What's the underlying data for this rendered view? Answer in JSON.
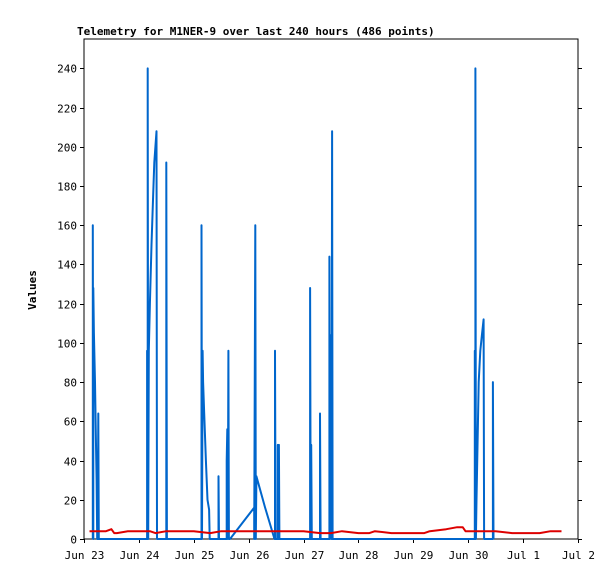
{
  "chart_data": {
    "type": "line",
    "title": "Telemetry for M1NER-9 over last 240 hours (486 points)",
    "ylabel": "Values",
    "xlabel": "",
    "ylim": [
      0,
      255
    ],
    "xlim": [
      0,
      9
    ],
    "yticks": [
      0,
      20,
      40,
      60,
      80,
      100,
      120,
      140,
      160,
      180,
      200,
      220,
      240
    ],
    "xticks": [
      {
        "label": "Jun 23",
        "day": 0
      },
      {
        "label": "Jun 24",
        "day": 1
      },
      {
        "label": "Jun 25",
        "day": 2
      },
      {
        "label": "Jun 26",
        "day": 3
      },
      {
        "label": "Jun 27",
        "day": 4
      },
      {
        "label": "Jun 28",
        "day": 5
      },
      {
        "label": "Jun 29",
        "day": 6
      },
      {
        "label": "Jun 30",
        "day": 7
      },
      {
        "label": "Jul 1",
        "day": 8
      },
      {
        "label": "Jul 2",
        "day": 9
      }
    ],
    "grid": false,
    "series": [
      {
        "color": "#0066cc",
        "points": [
          [
            0.16,
            0
          ],
          [
            0.16,
            160
          ],
          [
            0.17,
            0
          ],
          [
            0.17,
            128
          ],
          [
            0.18,
            105
          ],
          [
            0.2,
            80
          ],
          [
            0.21,
            64
          ],
          [
            0.22,
            45
          ],
          [
            0.23,
            30
          ],
          [
            0.24,
            0
          ],
          [
            0.25,
            0
          ],
          [
            0.26,
            64
          ],
          [
            0.27,
            0
          ],
          [
            1.15,
            0
          ],
          [
            1.15,
            96
          ],
          [
            1.16,
            0
          ],
          [
            1.16,
            240
          ],
          [
            1.17,
            0
          ],
          [
            1.18,
            96
          ],
          [
            1.2,
            120
          ],
          [
            1.23,
            150
          ],
          [
            1.26,
            176
          ],
          [
            1.28,
            192
          ],
          [
            1.3,
            200
          ],
          [
            1.32,
            208
          ],
          [
            1.33,
            0
          ],
          [
            1.5,
            0
          ],
          [
            1.5,
            192
          ],
          [
            1.51,
            0
          ],
          [
            2.14,
            0
          ],
          [
            2.14,
            160
          ],
          [
            2.15,
            0
          ],
          [
            2.16,
            96
          ],
          [
            2.17,
            80
          ],
          [
            2.19,
            64
          ],
          [
            2.22,
            40
          ],
          [
            2.25,
            20
          ],
          [
            2.28,
            15
          ],
          [
            2.29,
            0
          ],
          [
            2.45,
            0
          ],
          [
            2.45,
            32
          ],
          [
            2.46,
            0
          ],
          [
            2.6,
            0
          ],
          [
            2.6,
            40
          ],
          [
            2.61,
            56
          ],
          [
            2.62,
            0
          ],
          [
            2.63,
            96
          ],
          [
            2.64,
            0
          ],
          [
            2.66,
            0
          ],
          [
            3.1,
            16
          ],
          [
            3.1,
            0
          ],
          [
            3.12,
            160
          ],
          [
            3.13,
            0
          ],
          [
            3.14,
            32
          ],
          [
            3.3,
            16
          ],
          [
            3.47,
            0
          ],
          [
            3.48,
            0
          ],
          [
            3.48,
            96
          ],
          [
            3.49,
            0
          ],
          [
            3.53,
            0
          ],
          [
            3.53,
            48
          ],
          [
            3.54,
            0
          ],
          [
            3.55,
            48
          ],
          [
            3.56,
            0
          ],
          [
            4.12,
            0
          ],
          [
            4.12,
            128
          ],
          [
            4.13,
            0
          ],
          [
            4.14,
            48
          ],
          [
            4.15,
            0
          ],
          [
            4.3,
            0
          ],
          [
            4.3,
            64
          ],
          [
            4.31,
            0
          ],
          [
            4.47,
            0
          ],
          [
            4.47,
            144
          ],
          [
            4.48,
            0
          ],
          [
            4.5,
            104
          ],
          [
            4.51,
            0
          ],
          [
            4.52,
            208
          ],
          [
            4.53,
            0
          ],
          [
            7.12,
            0
          ],
          [
            7.12,
            96
          ],
          [
            7.13,
            0
          ],
          [
            7.13,
            240
          ],
          [
            7.14,
            0
          ],
          [
            7.15,
            20
          ],
          [
            7.17,
            50
          ],
          [
            7.19,
            80
          ],
          [
            7.22,
            96
          ],
          [
            7.25,
            104
          ],
          [
            7.28,
            112
          ],
          [
            7.29,
            0
          ],
          [
            7.45,
            0
          ],
          [
            7.45,
            80
          ],
          [
            7.46,
            0
          ]
        ]
      },
      {
        "color": "#dd0000",
        "points": [
          [
            0.1,
            4
          ],
          [
            0.3,
            4
          ],
          [
            0.4,
            4
          ],
          [
            0.5,
            5
          ],
          [
            0.55,
            3
          ],
          [
            0.6,
            3
          ],
          [
            0.8,
            4
          ],
          [
            1.0,
            4
          ],
          [
            1.2,
            4
          ],
          [
            1.3,
            3
          ],
          [
            1.5,
            4
          ],
          [
            2.0,
            4
          ],
          [
            2.3,
            3
          ],
          [
            2.5,
            4
          ],
          [
            2.9,
            4
          ],
          [
            3.2,
            4
          ],
          [
            3.5,
            4
          ],
          [
            4.0,
            4
          ],
          [
            4.3,
            3
          ],
          [
            4.5,
            3
          ],
          [
            4.7,
            4
          ],
          [
            5.0,
            3
          ],
          [
            5.2,
            3
          ],
          [
            5.3,
            4
          ],
          [
            5.6,
            3
          ],
          [
            6.0,
            3
          ],
          [
            6.2,
            3
          ],
          [
            6.3,
            4
          ],
          [
            6.6,
            5
          ],
          [
            6.8,
            6
          ],
          [
            6.9,
            6
          ],
          [
            6.95,
            4
          ],
          [
            7.2,
            4
          ],
          [
            7.5,
            4
          ],
          [
            7.8,
            3
          ],
          [
            8.0,
            3
          ],
          [
            8.3,
            3
          ],
          [
            8.5,
            4
          ],
          [
            8.7,
            4
          ]
        ]
      }
    ]
  }
}
